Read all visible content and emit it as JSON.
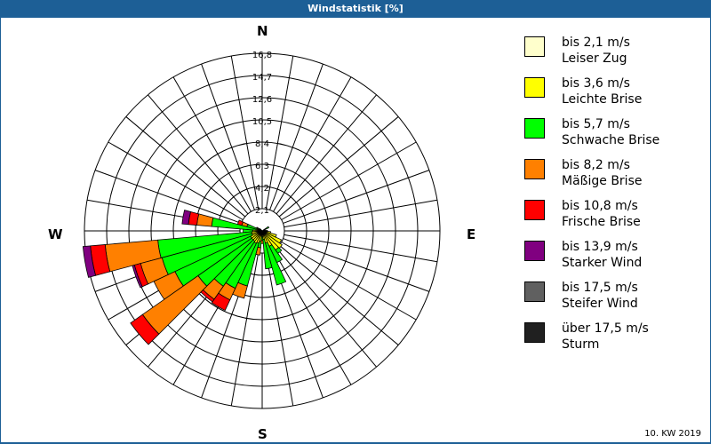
{
  "title": "Windstatistik [%]",
  "footer": "10. KW 2019",
  "compass": {
    "n": "N",
    "e": "E",
    "s": "S",
    "w": "W"
  },
  "legend": [
    {
      "range": "bis 2,1 m/s",
      "name": "Leiser Zug",
      "color": "#ffffcc"
    },
    {
      "range": "bis 3,6 m/s",
      "name": "Leichte Brise",
      "color": "#ffff00"
    },
    {
      "range": "bis 5,7 m/s",
      "name": "Schwache Brise",
      "color": "#00ff00"
    },
    {
      "range": "bis 8,2 m/s",
      "name": "Mäßige Brise",
      "color": "#ff8000"
    },
    {
      "range": "bis 10,8 m/s",
      "name": "Frische Brise",
      "color": "#ff0000"
    },
    {
      "range": "bis 13,9 m/s",
      "name": "Starker Wind",
      "color": "#800080"
    },
    {
      "range": "bis 17,5 m/s",
      "name": "Steifer Wind",
      "color": "#606060"
    },
    {
      "range": "über 17,5 m/s",
      "name": "Sturm",
      "color": "#202020"
    }
  ],
  "chart_data": {
    "type": "wind-rose",
    "title": "Windstatistik [%]",
    "radial_ticks": [
      "2,1",
      "4,2",
      "6,3",
      "8,4",
      "10,5",
      "12,6",
      "14,7",
      "16,8"
    ],
    "rmax": 16.8,
    "sector_width_deg": 10,
    "classes": [
      "bis 2,1 m/s",
      "bis 3,6 m/s",
      "bis 5,7 m/s",
      "bis 8,2 m/s",
      "bis 10,8 m/s",
      "bis 13,9 m/s",
      "bis 17,5 m/s",
      "über 17,5 m/s"
    ],
    "note": "cumulative percent per direction, per class (estimated)",
    "directions": [
      {
        "deg": 300,
        "cum": [
          0.1,
          0.3,
          0.4,
          0.5,
          0.6
        ]
      },
      {
        "deg": 290,
        "cum": [
          0.2,
          0.3,
          1.5,
          2.0,
          2.4
        ]
      },
      {
        "deg": 280,
        "cum": [
          0.3,
          0.6,
          4.8,
          6.2,
          7.0,
          7.6
        ]
      },
      {
        "deg": 270,
        "cum": [
          0.3,
          0.9,
          1.8
        ]
      },
      {
        "deg": 260,
        "cum": [
          0.4,
          1.0,
          9.9,
          14.9,
          16.3,
          17.0
        ]
      },
      {
        "deg": 250,
        "cum": [
          0.4,
          1.0,
          9.8,
          11.9,
          12.5,
          12.7
        ]
      },
      {
        "deg": 240,
        "cum": [
          0.4,
          1.2,
          9.1,
          11.3
        ]
      },
      {
        "deg": 230,
        "cum": [
          0.4,
          1.2,
          7.4,
          13.8,
          15.2
        ]
      },
      {
        "deg": 220,
        "cum": [
          0.4,
          1.2,
          6.4,
          7.9,
          8.2
        ]
      },
      {
        "deg": 210,
        "cum": [
          0.4,
          1.3,
          6.0,
          7.2,
          8.3
        ]
      },
      {
        "deg": 200,
        "cum": [
          0.4,
          1.2,
          5.4,
          6.6
        ]
      },
      {
        "deg": 190,
        "cum": [
          0.3,
          1.0,
          1.6,
          2.3
        ]
      },
      {
        "deg": 180,
        "cum": [
          0.2,
          0.5,
          0.9,
          1.2
        ]
      },
      {
        "deg": 170,
        "cum": [
          0.3,
          0.8,
          3.6
        ]
      },
      {
        "deg": 160,
        "cum": [
          0.4,
          1.2,
          5.3
        ]
      },
      {
        "deg": 150,
        "cum": [
          0.4,
          1.6,
          3.3
        ]
      },
      {
        "deg": 140,
        "cum": [
          0.4,
          2.2,
          2.6
        ]
      },
      {
        "deg": 130,
        "cum": [
          0.4,
          2.3
        ]
      },
      {
        "deg": 120,
        "cum": [
          0.4,
          2.0
        ]
      },
      {
        "deg": 110,
        "cum": [
          0.3,
          1.4
        ]
      },
      {
        "deg": 100,
        "cum": [
          0.2,
          0.8
        ]
      },
      {
        "deg": 90,
        "cum": [
          0.2,
          0.5
        ]
      },
      {
        "deg": 80,
        "cum": [
          0.1,
          0.3
        ]
      },
      {
        "deg": 60,
        "cum": [
          0.2,
          0.4,
          0.7
        ]
      },
      {
        "deg": 310,
        "cum": [
          0.1,
          0.2,
          0.3
        ]
      }
    ]
  }
}
